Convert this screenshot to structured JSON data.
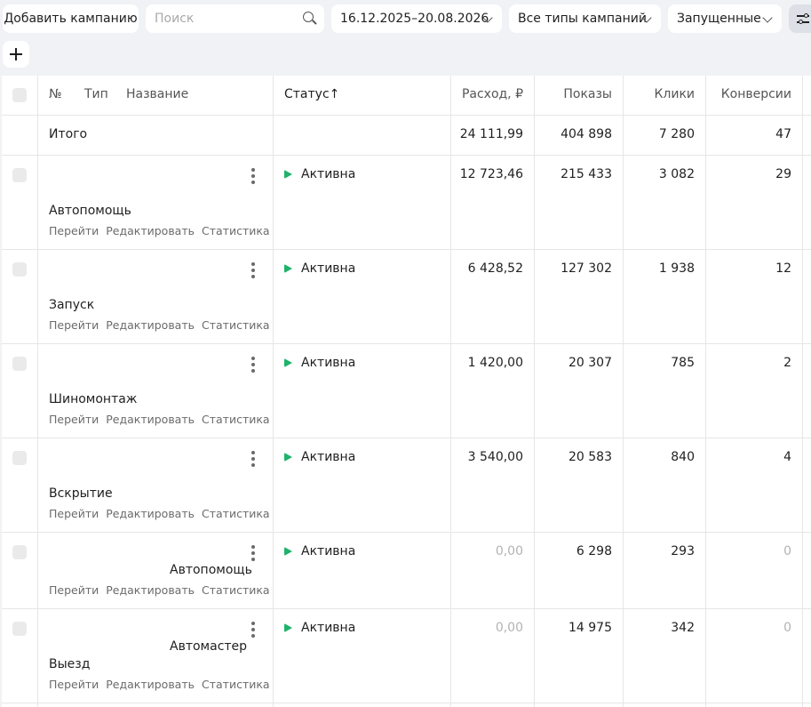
{
  "toolbar": {
    "add_campaign_label": "Добавить кампанию",
    "search_placeholder": "Поиск",
    "date_range": "16.12.2025–20.08.2026",
    "campaign_types": "Все типы кампаний",
    "state_filter": "Запущенные"
  },
  "table": {
    "headers": {
      "number": "№",
      "type": "Тип",
      "name": "Название",
      "status": "Статус↑",
      "spend": "Расход, ₽",
      "impressions": "Показы",
      "clicks": "Клики",
      "conversions": "Конверсии"
    },
    "total": {
      "label": "Итого",
      "spend": "24 111,99",
      "impressions": "404 898",
      "clicks": "7 280",
      "conversions": "47"
    },
    "links": {
      "go": "Перейти",
      "edit": "Редактировать",
      "stats": "Статистика"
    },
    "rows": [
      {
        "type_label": "",
        "name": "Автопомощь",
        "status": "Активна",
        "spend": "12 723,46",
        "impressions": "215 433",
        "clicks": "3 082",
        "conversions": "29"
      },
      {
        "type_label": "",
        "name": "Запуск",
        "status": "Активна",
        "spend": "6 428,52",
        "impressions": "127 302",
        "clicks": "1 938",
        "conversions": "12"
      },
      {
        "type_label": "",
        "name": "Шиномонтаж",
        "status": "Активна",
        "spend": "1 420,00",
        "impressions": "20 307",
        "clicks": "785",
        "conversions": "2"
      },
      {
        "type_label": "",
        "name": "Вскрытие",
        "status": "Активна",
        "spend": "3 540,00",
        "impressions": "20 583",
        "clicks": "840",
        "conversions": "4"
      },
      {
        "type_label": "Автопомощь",
        "name": "",
        "status": "Активна",
        "spend": "0,00",
        "impressions": "6 298",
        "clicks": "293",
        "conversions": "0"
      },
      {
        "type_label": "Автомастер",
        "name": "Выезд",
        "status": "Активна",
        "spend": "0,00",
        "impressions": "14 975",
        "clicks": "342",
        "conversions": "0"
      }
    ]
  }
}
